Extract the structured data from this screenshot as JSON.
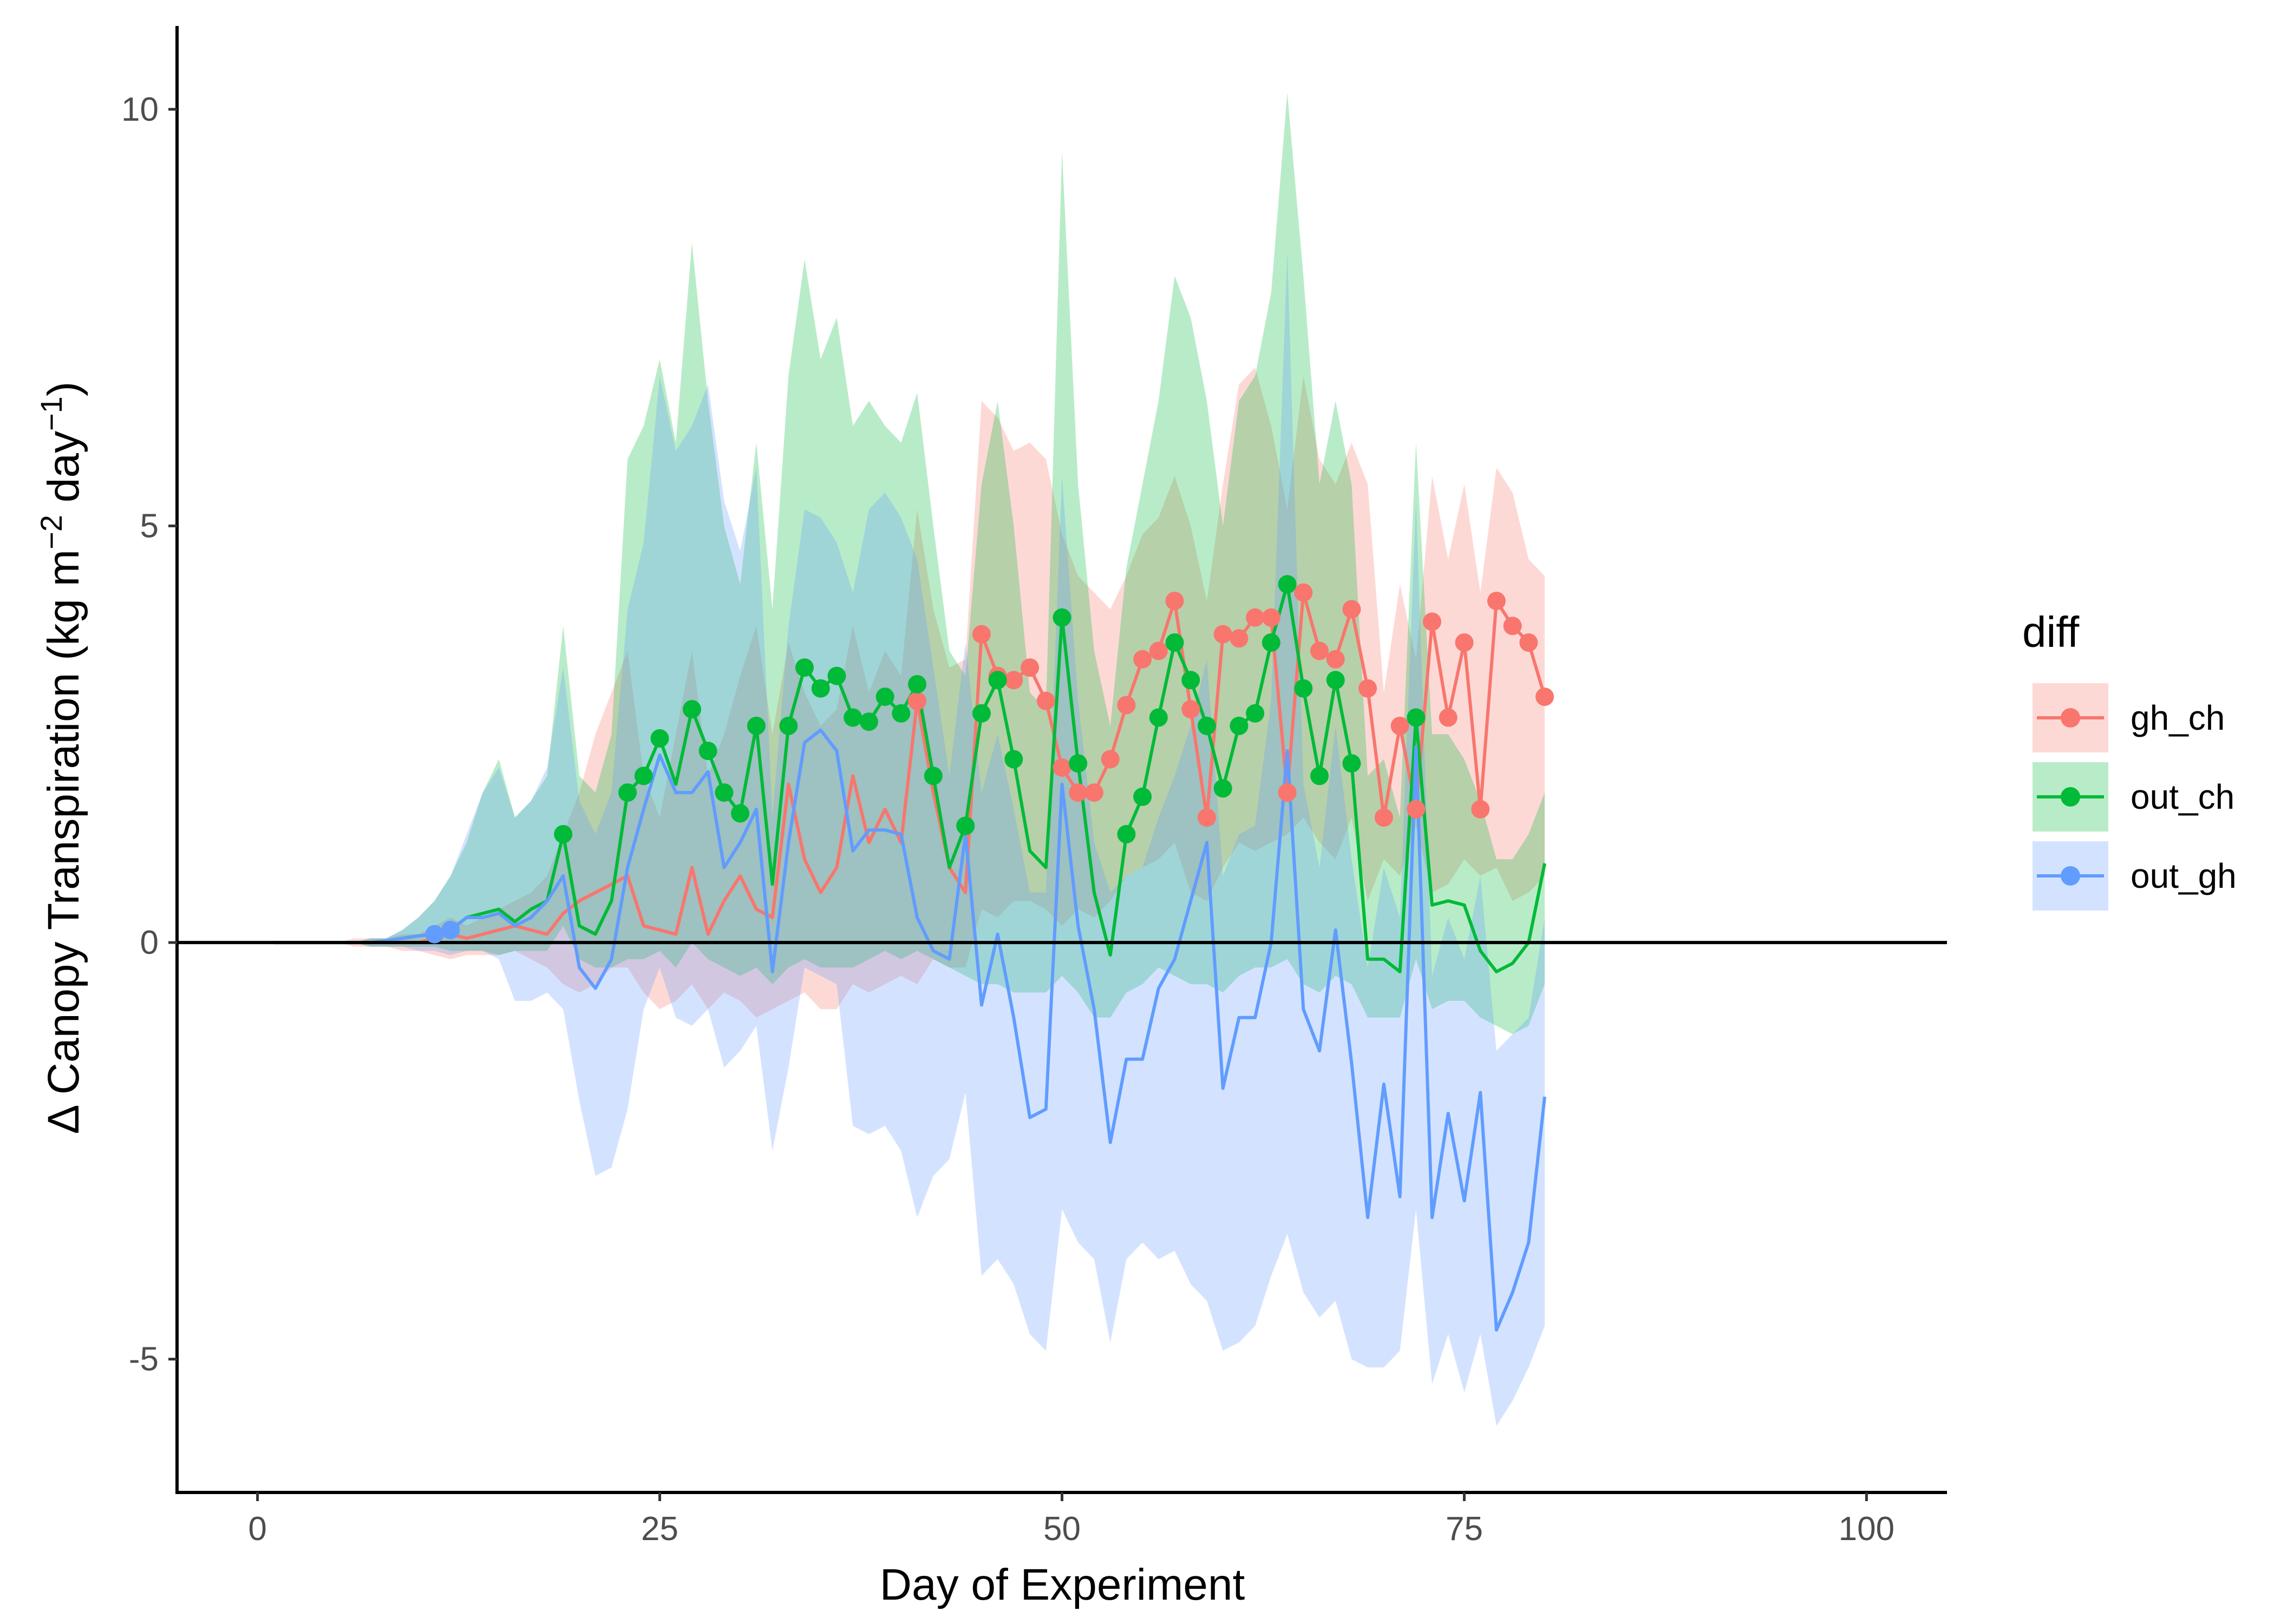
{
  "chart_data": {
    "type": "line",
    "xlabel": "Day of Experiment",
    "ylabel_text": "Δ Canopy Transpiration (kg m",
    "ylabel_sup1": "−2",
    "ylabel_mid": " day",
    "ylabel_sup2": "−1",
    "ylabel_end": ")",
    "xlim": [
      -5,
      105
    ],
    "ylim": [
      -6.6,
      11
    ],
    "xticks": [
      0,
      25,
      50,
      75,
      100
    ],
    "xtick_labels": [
      "0",
      "25",
      "50",
      "75",
      "100"
    ],
    "yticks": [
      -5,
      0,
      5,
      10
    ],
    "ytick_labels": [
      "-5",
      "0",
      "5",
      "10"
    ],
    "hline": 0,
    "legend": {
      "title": "diff",
      "position": "right"
    },
    "series": [
      {
        "name": "gh_ch",
        "color": "#F8766D",
        "x": [
          1,
          2,
          3,
          4,
          5,
          6,
          7,
          8,
          9,
          10,
          11,
          12,
          13,
          14,
          15,
          16,
          17,
          18,
          19,
          20,
          21,
          22,
          23,
          24,
          25,
          26,
          27,
          28,
          29,
          30,
          31,
          32,
          33,
          34,
          35,
          36,
          37,
          38,
          39,
          40,
          41,
          42,
          43,
          44,
          45,
          46,
          47,
          48,
          49,
          50,
          51,
          52,
          53,
          54,
          55,
          56,
          57,
          58,
          59,
          60,
          61,
          62,
          63,
          64,
          65,
          66,
          67,
          68,
          69,
          70,
          71,
          72,
          73,
          74,
          75,
          76,
          77,
          78,
          79,
          80
        ],
        "y": [
          0,
          0,
          0,
          0,
          0,
          0,
          0,
          0,
          0,
          0,
          0.05,
          0.1,
          0.05,
          0.1,
          0.15,
          0.2,
          0.15,
          0.1,
          0.35,
          0.5,
          0.6,
          0.7,
          0.8,
          0.2,
          0.15,
          0.1,
          0.9,
          0.1,
          0.5,
          0.8,
          0.4,
          0.3,
          1.9,
          1.0,
          0.6,
          0.9,
          2.0,
          1.2,
          1.6,
          1.2,
          2.9,
          1.8,
          0.9,
          0.6,
          3.7,
          3.2,
          3.15,
          3.3,
          2.9,
          2.1,
          1.8,
          1.8,
          2.2,
          2.85,
          3.4,
          3.5,
          4.1,
          2.8,
          1.5,
          3.7,
          3.65,
          3.9,
          3.9,
          1.8,
          4.2,
          3.5,
          3.4,
          4.0,
          3.05,
          1.5,
          2.6,
          1.6,
          3.85,
          2.7,
          3.6,
          1.6,
          4.1,
          3.8,
          3.6,
          2.95
        ],
        "lower": [
          0,
          0,
          0,
          0,
          0,
          -0.05,
          -0.05,
          -0.05,
          -0.1,
          -0.1,
          -0.15,
          -0.2,
          -0.15,
          -0.15,
          -0.15,
          -0.1,
          -0.2,
          -0.3,
          -0.5,
          -0.6,
          -0.5,
          -0.3,
          -0.3,
          -0.6,
          -0.8,
          -0.7,
          -0.5,
          -0.8,
          -0.6,
          -0.7,
          -0.9,
          -0.8,
          -0.7,
          -0.6,
          -0.8,
          -0.8,
          -0.5,
          -0.6,
          -0.5,
          -0.4,
          -0.5,
          -0.2,
          -0.3,
          -0.3,
          0.4,
          0.3,
          0.5,
          0.5,
          0.4,
          0.2,
          0.4,
          0.3,
          0.5,
          0.8,
          0.9,
          1.0,
          1.2,
          0.6,
          0.5,
          0.9,
          1.2,
          1.1,
          1.2,
          1.3,
          1.5,
          1.2,
          1.0,
          1.5,
          0.5,
          1.0,
          0.8,
          1.4,
          0.6,
          0.7,
          1.0,
          0.8,
          0.9,
          0.5,
          0.6,
          0.8
        ],
        "upper": [
          0,
          0,
          0,
          0,
          0,
          0.05,
          0.05,
          0.05,
          0.1,
          0.1,
          0.2,
          0.3,
          0.2,
          0.3,
          0.4,
          0.5,
          0.6,
          0.8,
          1.3,
          1.8,
          2.5,
          3.0,
          3.5,
          2.0,
          1.5,
          2.5,
          3.5,
          2.0,
          2.5,
          3.2,
          3.8,
          2.5,
          3.6,
          3.0,
          2.6,
          2.8,
          3.8,
          3.0,
          3.5,
          3.2,
          5.2,
          4.0,
          3.3,
          3.4,
          6.5,
          6.3,
          5.9,
          6.0,
          5.8,
          4.9,
          4.4,
          4.2,
          4.0,
          4.4,
          4.9,
          5.1,
          5.6,
          5.0,
          4.1,
          5.5,
          6.7,
          6.9,
          6.2,
          5.2,
          6.8,
          5.8,
          5.5,
          6.0,
          5.5,
          3.0,
          4.3,
          3.4,
          5.6,
          4.6,
          5.5,
          4.2,
          5.7,
          5.4,
          4.6,
          4.4
        ],
        "markers_x": [
          41,
          45,
          46,
          47,
          48,
          49,
          50,
          51,
          52,
          53,
          54,
          55,
          56,
          57,
          58,
          59,
          60,
          61,
          62,
          63,
          64,
          65,
          66,
          67,
          68,
          69,
          70,
          71,
          72,
          73,
          74,
          75,
          76,
          77,
          78,
          79,
          80
        ],
        "markers_y": [
          2.9,
          3.7,
          3.2,
          3.15,
          3.3,
          2.9,
          2.1,
          1.8,
          1.8,
          2.2,
          2.85,
          3.4,
          3.5,
          4.1,
          2.8,
          1.5,
          3.7,
          3.65,
          3.9,
          3.9,
          1.8,
          4.2,
          3.5,
          3.4,
          4.0,
          3.05,
          1.5,
          2.6,
          1.6,
          3.85,
          2.7,
          3.6,
          1.6,
          4.1,
          3.8,
          3.6,
          2.95
        ]
      },
      {
        "name": "out_ch",
        "color": "#00BA38",
        "x": [
          1,
          2,
          3,
          4,
          5,
          6,
          7,
          8,
          9,
          10,
          11,
          12,
          13,
          14,
          15,
          16,
          17,
          18,
          19,
          20,
          21,
          22,
          23,
          24,
          25,
          26,
          27,
          28,
          29,
          30,
          31,
          32,
          33,
          34,
          35,
          36,
          37,
          38,
          39,
          40,
          41,
          42,
          43,
          44,
          45,
          46,
          47,
          48,
          49,
          50,
          51,
          52,
          53,
          54,
          55,
          56,
          57,
          58,
          59,
          60,
          61,
          62,
          63,
          64,
          65,
          66,
          67,
          68,
          69,
          70,
          71,
          72,
          73,
          74,
          75,
          76,
          77,
          78,
          79,
          80
        ],
        "y": [
          0,
          0,
          0,
          0,
          0,
          0,
          0,
          0.02,
          0.05,
          0.08,
          0.1,
          0.15,
          0.3,
          0.35,
          0.4,
          0.25,
          0.4,
          0.5,
          1.3,
          0.2,
          0.1,
          0.5,
          1.8,
          2.0,
          2.45,
          1.9,
          2.8,
          2.3,
          1.8,
          1.55,
          2.6,
          0.7,
          2.6,
          3.3,
          3.05,
          3.2,
          2.7,
          2.65,
          2.95,
          2.75,
          3.1,
          2.0,
          0.9,
          1.4,
          2.75,
          3.15,
          2.2,
          1.1,
          0.9,
          3.9,
          2.15,
          0.6,
          -0.15,
          1.3,
          1.75,
          2.7,
          3.6,
          3.15,
          2.6,
          1.85,
          2.6,
          2.75,
          3.6,
          4.3,
          3.05,
          2.0,
          3.15,
          2.15,
          -0.2,
          -0.2,
          -0.35,
          2.7,
          0.45,
          0.5,
          0.45,
          -0.1,
          -0.35,
          -0.25,
          0.0,
          0.95
        ],
        "lower": [
          0,
          0,
          0,
          0,
          0,
          0,
          -0.05,
          -0.05,
          -0.05,
          -0.05,
          -0.05,
          -0.1,
          -0.1,
          -0.1,
          -0.15,
          -0.1,
          -0.1,
          -0.1,
          0.2,
          -0.2,
          -0.3,
          -0.3,
          -0.2,
          -0.2,
          -0.1,
          -0.3,
          0.0,
          -0.2,
          -0.3,
          -0.4,
          -0.3,
          -0.5,
          -0.3,
          -0.2,
          -0.3,
          -0.3,
          -0.3,
          -0.2,
          -0.1,
          -0.2,
          -0.1,
          -0.2,
          -0.3,
          -0.4,
          -0.5,
          -0.5,
          -0.6,
          -0.6,
          -0.6,
          -0.4,
          -0.6,
          -0.9,
          -0.9,
          -0.6,
          -0.5,
          -0.3,
          -0.4,
          -0.5,
          -0.5,
          -0.6,
          -0.4,
          -0.3,
          -0.3,
          -0.2,
          -0.5,
          -0.6,
          -0.4,
          -0.5,
          -0.9,
          -0.9,
          -0.9,
          -0.2,
          -0.8,
          -0.7,
          -0.7,
          -0.9,
          -1.0,
          -1.1,
          -1.0,
          -0.5
        ],
        "upper": [
          0,
          0,
          0,
          0,
          0,
          0,
          0.05,
          0.05,
          0.15,
          0.3,
          0.5,
          0.8,
          1.2,
          1.8,
          2.2,
          1.5,
          1.7,
          2.0,
          3.8,
          2.0,
          1.8,
          2.5,
          5.8,
          6.2,
          7.0,
          6.0,
          8.4,
          6.5,
          5.0,
          4.3,
          6.0,
          4.0,
          6.8,
          8.2,
          7.0,
          7.5,
          6.2,
          6.5,
          6.2,
          6.0,
          6.6,
          5.0,
          3.5,
          3.2,
          5.5,
          6.5,
          5.0,
          3.0,
          2.8,
          9.5,
          5.5,
          3.5,
          2.6,
          4.5,
          5.5,
          6.5,
          8.0,
          7.5,
          6.5,
          5.0,
          6.5,
          6.8,
          7.8,
          10.2,
          8.0,
          5.5,
          6.5,
          5.5,
          2.0,
          2.2,
          1.5,
          6.0,
          2.5,
          2.5,
          2.2,
          1.7,
          1.0,
          1.0,
          1.3,
          1.8
        ],
        "markers_x": [
          19,
          23,
          24,
          25,
          27,
          28,
          29,
          30,
          31,
          33,
          34,
          35,
          36,
          37,
          38,
          39,
          40,
          41,
          42,
          44,
          45,
          46,
          47,
          50,
          51,
          54,
          55,
          56,
          57,
          58,
          59,
          60,
          61,
          62,
          63,
          64,
          65,
          66,
          67,
          68,
          72
        ],
        "markers_y": [
          1.3,
          1.8,
          2.0,
          2.45,
          2.8,
          2.3,
          1.8,
          1.55,
          2.6,
          2.6,
          3.3,
          3.05,
          3.2,
          2.7,
          2.65,
          2.95,
          2.75,
          3.1,
          2.0,
          1.4,
          2.75,
          3.15,
          2.2,
          3.9,
          2.15,
          1.3,
          1.75,
          2.7,
          3.6,
          3.15,
          2.6,
          1.85,
          2.6,
          2.75,
          3.6,
          4.3,
          3.05,
          2.0,
          3.15,
          2.15,
          2.7
        ]
      },
      {
        "name": "out_gh",
        "color": "#619CFF",
        "x": [
          1,
          2,
          3,
          4,
          5,
          6,
          7,
          8,
          9,
          10,
          11,
          12,
          13,
          14,
          15,
          16,
          17,
          18,
          19,
          20,
          21,
          22,
          23,
          24,
          25,
          26,
          27,
          28,
          29,
          30,
          31,
          32,
          33,
          34,
          35,
          36,
          37,
          38,
          39,
          40,
          41,
          42,
          43,
          44,
          45,
          46,
          47,
          48,
          49,
          50,
          51,
          52,
          53,
          54,
          55,
          56,
          57,
          58,
          59,
          60,
          61,
          62,
          63,
          64,
          65,
          66,
          67,
          68,
          69,
          70,
          71,
          72,
          73,
          74,
          75,
          76,
          77,
          78,
          79,
          80
        ],
        "y": [
          0,
          0,
          0,
          0,
          0,
          0,
          0,
          0.02,
          0.05,
          0.08,
          0.1,
          0.15,
          0.3,
          0.3,
          0.35,
          0.2,
          0.3,
          0.5,
          0.8,
          -0.3,
          -0.55,
          -0.2,
          0.9,
          1.6,
          2.25,
          1.8,
          1.8,
          2.05,
          0.9,
          1.2,
          1.6,
          -0.35,
          1.2,
          2.4,
          2.55,
          2.3,
          1.1,
          1.35,
          1.35,
          1.3,
          0.3,
          -0.1,
          -0.2,
          1.3,
          -0.75,
          0.1,
          -0.9,
          -2.1,
          -2.0,
          1.9,
          0.2,
          -0.8,
          -2.4,
          -1.4,
          -1.4,
          -0.55,
          -0.2,
          0.5,
          1.2,
          -1.75,
          -0.9,
          -0.9,
          0.0,
          2.3,
          -0.8,
          -1.3,
          0.15,
          -1.45,
          -3.3,
          -1.7,
          -3.05,
          2.35,
          -3.3,
          -2.05,
          -3.1,
          -1.8,
          -4.65,
          -4.2,
          -3.6,
          -1.85
        ],
        "lower": [
          0,
          0,
          0,
          0,
          0,
          0,
          -0.05,
          -0.05,
          -0.05,
          -0.1,
          -0.1,
          -0.15,
          -0.1,
          -0.1,
          -0.2,
          -0.7,
          -0.7,
          -0.6,
          -0.8,
          -1.9,
          -2.8,
          -2.7,
          -2.0,
          -0.8,
          -0.3,
          -0.9,
          -1.0,
          -0.8,
          -1.5,
          -1.3,
          -1.0,
          -2.5,
          -1.5,
          -0.3,
          -0.4,
          -0.5,
          -2.2,
          -2.3,
          -2.2,
          -2.5,
          -3.3,
          -2.8,
          -2.6,
          -1.8,
          -4.0,
          -3.8,
          -4.1,
          -4.7,
          -4.9,
          -3.2,
          -3.6,
          -3.8,
          -4.8,
          -3.8,
          -3.6,
          -3.8,
          -3.7,
          -4.1,
          -4.3,
          -4.9,
          -4.8,
          -4.6,
          -4.0,
          -3.5,
          -4.2,
          -4.5,
          -4.3,
          -5.0,
          -5.1,
          -5.1,
          -4.9,
          -3.2,
          -5.3,
          -4.7,
          -5.4,
          -4.7,
          -5.8,
          -5.5,
          -5.1,
          -4.6
        ],
        "upper": [
          0,
          0,
          0,
          0,
          0,
          0,
          0.05,
          0.05,
          0.15,
          0.3,
          0.5,
          0.8,
          1.3,
          1.8,
          2.1,
          1.5,
          1.7,
          2.1,
          3.3,
          1.7,
          1.3,
          1.8,
          4.0,
          4.8,
          6.8,
          5.9,
          6.2,
          6.7,
          5.3,
          4.7,
          5.7,
          1.5,
          3.8,
          5.2,
          5.1,
          4.8,
          4.2,
          5.2,
          5.4,
          5.1,
          4.6,
          3.3,
          2.0,
          3.6,
          1.8,
          2.5,
          1.6,
          0.6,
          0.6,
          5.6,
          2.9,
          1.2,
          0.6,
          0.8,
          0.9,
          1.5,
          2.0,
          2.6,
          3.4,
          0.8,
          1.3,
          1.4,
          2.9,
          8.3,
          1.9,
          0.9,
          2.6,
          1.0,
          -0.3,
          0.9,
          0.3,
          5.3,
          -0.4,
          0.3,
          -0.2,
          0.8,
          -1.3,
          -1.1,
          -0.9,
          0.3
        ],
        "markers_x": [
          11,
          12
        ],
        "markers_y": [
          0.1,
          0.15
        ]
      }
    ]
  }
}
